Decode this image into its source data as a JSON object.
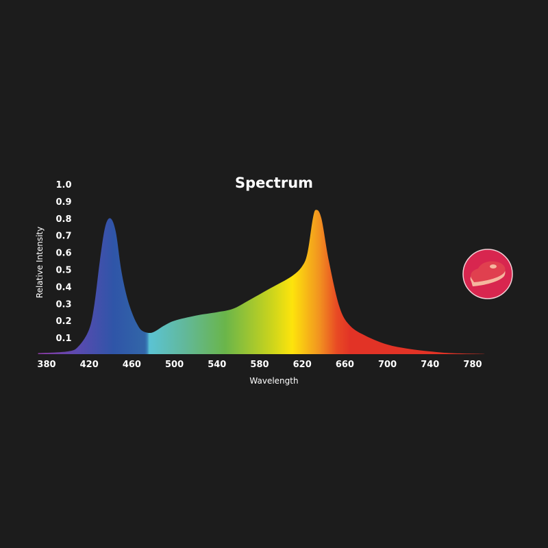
{
  "chart_data": {
    "type": "area",
    "title": "Spectrum",
    "xlabel": "Wavelength",
    "ylabel": "Relative Intensity",
    "xlim": [
      372,
      791
    ],
    "ylim": [
      0,
      1.0
    ],
    "x_ticks": [
      "380",
      "420",
      "460",
      "500",
      "540",
      "580",
      "620",
      "660",
      "700",
      "740",
      "780"
    ],
    "y_ticks": [
      "0.1",
      "0.2",
      "0.3",
      "0.4",
      "0.5",
      "0.6",
      "0.7",
      "0.8",
      "0.9",
      "1.0"
    ],
    "grid": false,
    "fill": "spectral gradient by wavelength",
    "series": [
      {
        "x": [
          372,
          400,
          410,
          420,
          425,
          430,
          435,
          440,
          445,
          450,
          455,
          460,
          465,
          470,
          479,
          490,
          500,
          520,
          540,
          555,
          570,
          590,
          610,
          620,
          625,
          630,
          633,
          638,
          645,
          655,
          665,
          680,
          700,
          720,
          740,
          760,
          791
        ],
        "y": [
          0.01,
          0.02,
          0.05,
          0.15,
          0.3,
          0.55,
          0.75,
          0.8,
          0.72,
          0.5,
          0.35,
          0.25,
          0.18,
          0.14,
          0.13,
          0.17,
          0.2,
          0.23,
          0.25,
          0.27,
          0.32,
          0.39,
          0.46,
          0.52,
          0.6,
          0.8,
          0.85,
          0.8,
          0.55,
          0.28,
          0.17,
          0.11,
          0.06,
          0.035,
          0.02,
          0.01,
          0.005
        ]
      }
    ]
  },
  "badge": {
    "icon": "steak-icon",
    "color": "#d8264f"
  }
}
